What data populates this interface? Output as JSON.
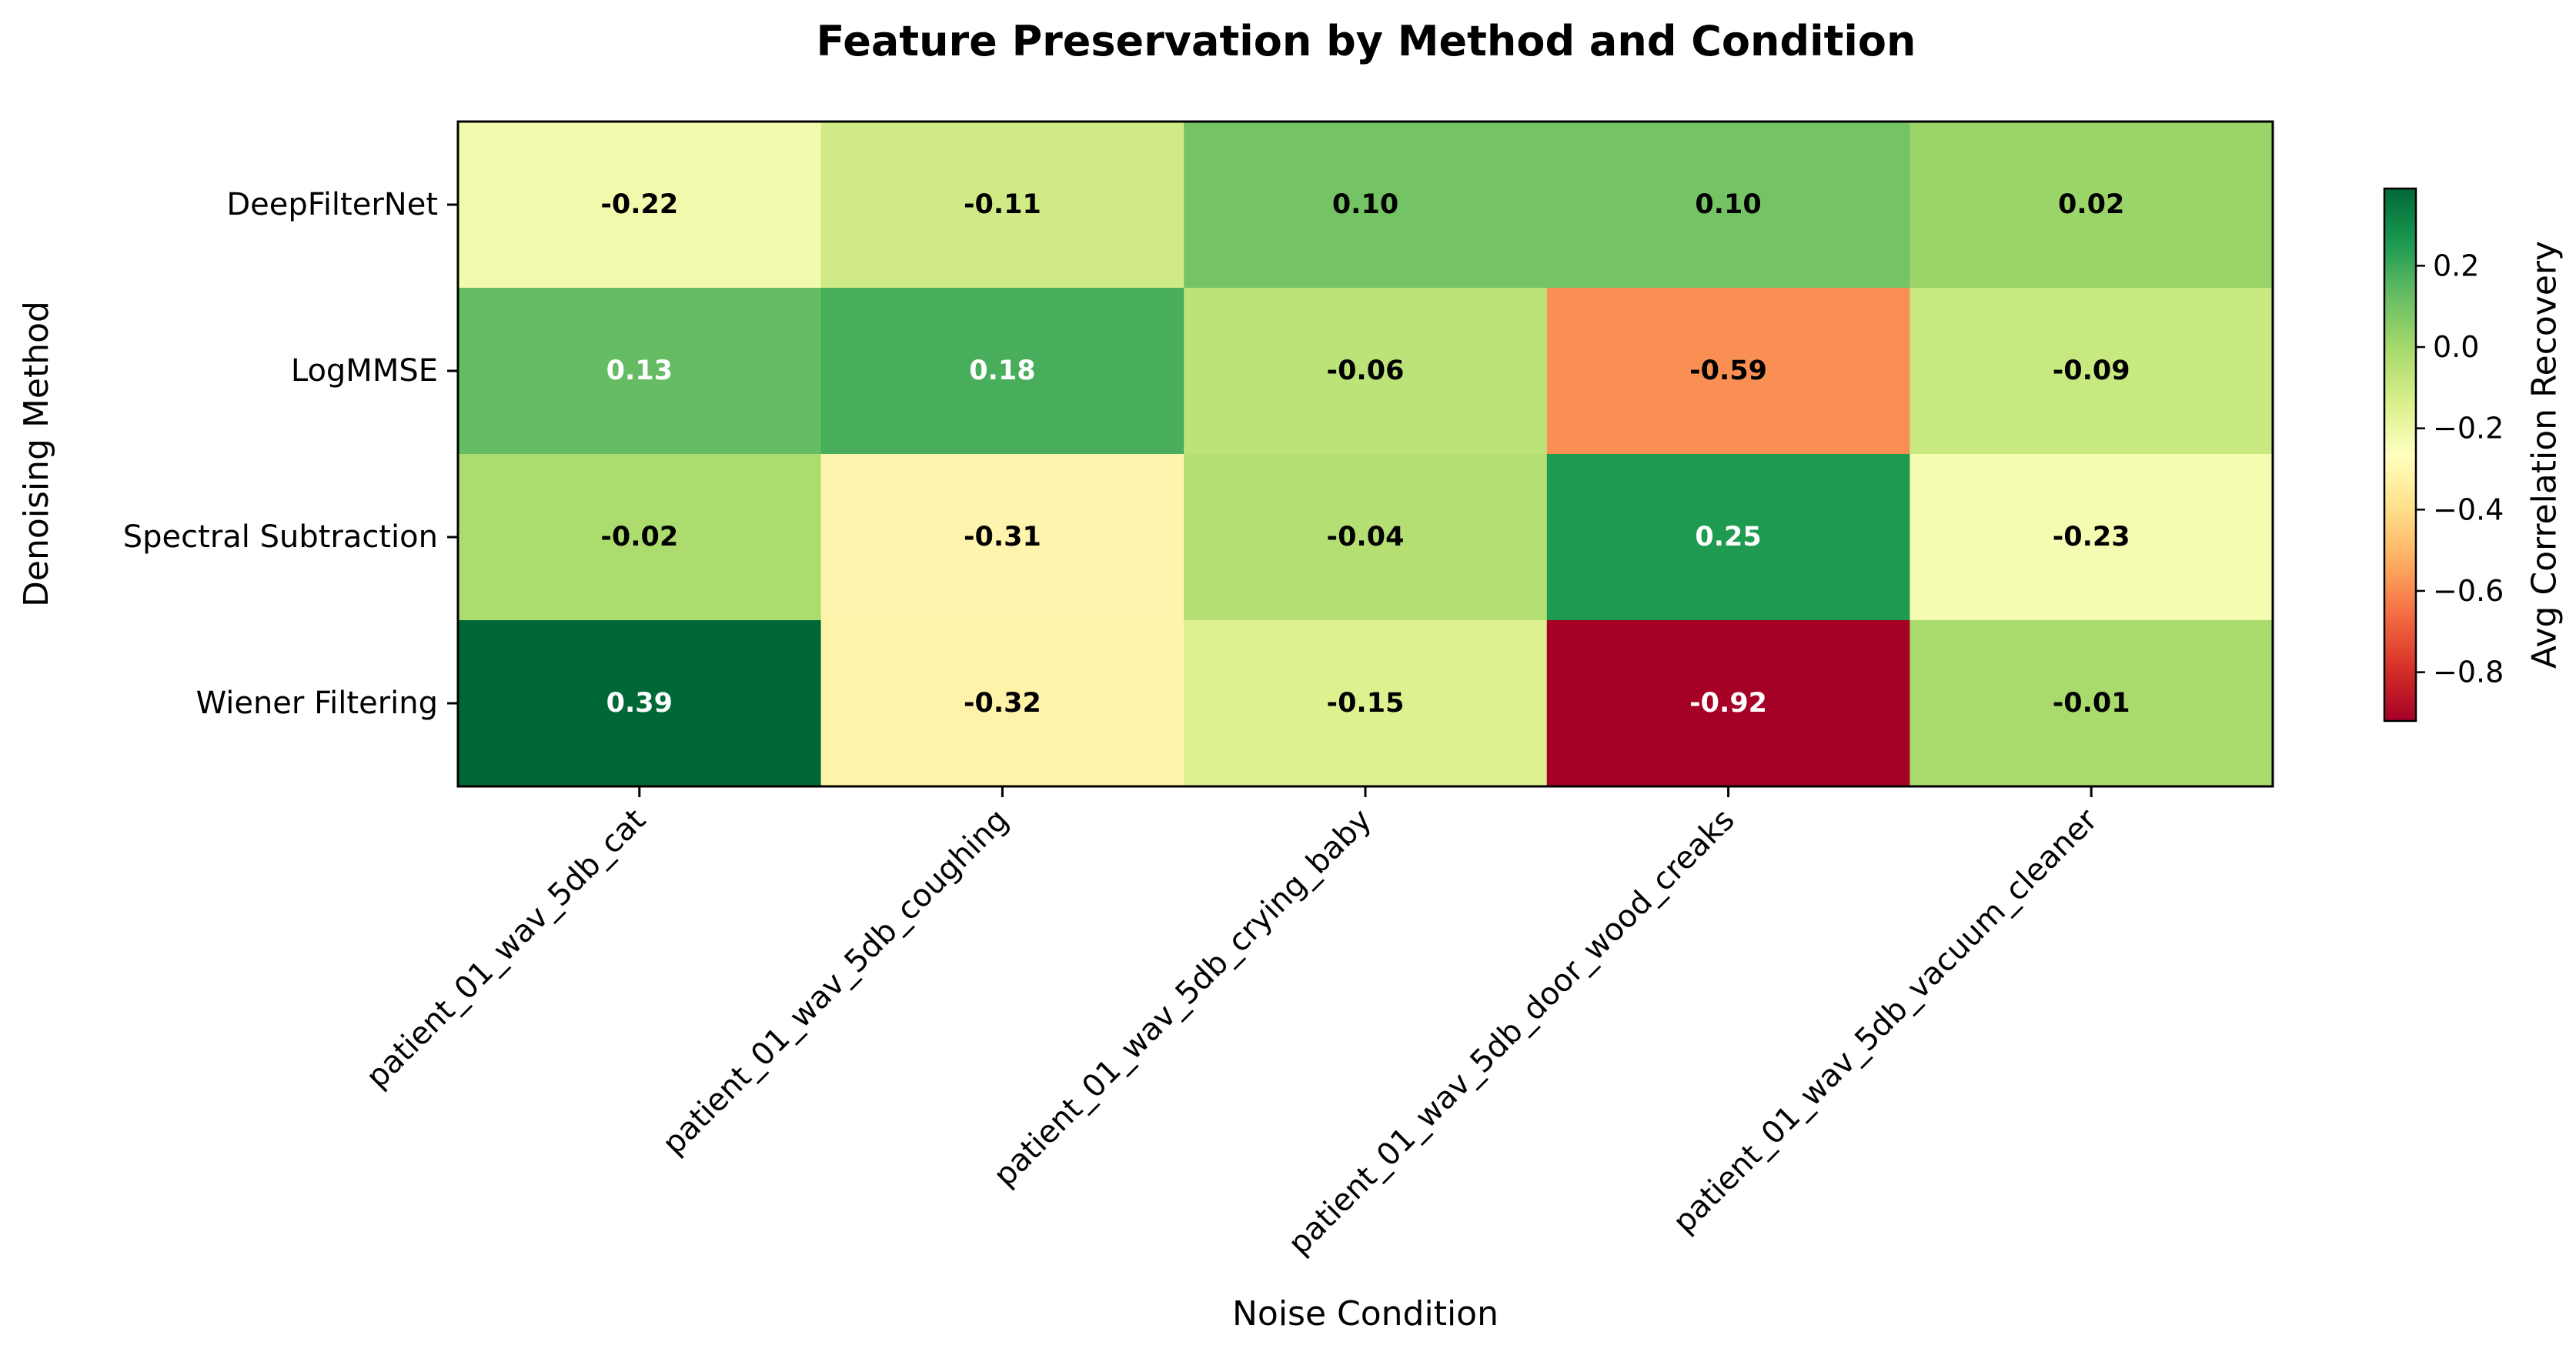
{
  "chart_data": {
    "type": "heatmap",
    "title": "Feature Preservation by Method and Condition",
    "xlabel": "Noise Condition",
    "ylabel": "Denoising Method",
    "x_categories": [
      "patient_01_wav_5db_cat",
      "patient_01_wav_5db_coughing",
      "patient_01_wav_5db_crying_baby",
      "patient_01_wav_5db_door_wood_creaks",
      "patient_01_wav_5db_vacuum_cleaner"
    ],
    "y_categories": [
      "DeepFilterNet",
      "LogMMSE",
      "Spectral Subtraction",
      "Wiener Filtering"
    ],
    "values": [
      [
        -0.22,
        -0.11,
        0.1,
        0.1,
        0.02
      ],
      [
        0.13,
        0.18,
        -0.06,
        -0.59,
        -0.09
      ],
      [
        -0.02,
        -0.31,
        -0.04,
        0.25,
        -0.23
      ],
      [
        0.39,
        -0.32,
        -0.15,
        -0.92,
        -0.01
      ]
    ],
    "value_labels": [
      [
        "-0.22",
        "-0.11",
        "0.10",
        "0.10",
        "0.02"
      ],
      [
        "0.13",
        "0.18",
        "-0.06",
        "-0.59",
        "-0.09"
      ],
      [
        "-0.02",
        "-0.31",
        "-0.04",
        "0.25",
        "-0.23"
      ],
      [
        "0.39",
        "-0.32",
        "-0.15",
        "-0.92",
        "-0.01"
      ]
    ],
    "colormap": "RdYlGn",
    "vmin": -0.92,
    "vmax": 0.39,
    "colorbar": {
      "label": "Avg Correlation Recovery",
      "ticks": [
        0.2,
        0.0,
        -0.2,
        -0.4,
        -0.6,
        -0.8
      ],
      "tick_labels": [
        "0.2",
        "0.0",
        "−0.2",
        "−0.4",
        "−0.6",
        "−0.8"
      ]
    },
    "grid": false,
    "legend": "none"
  }
}
